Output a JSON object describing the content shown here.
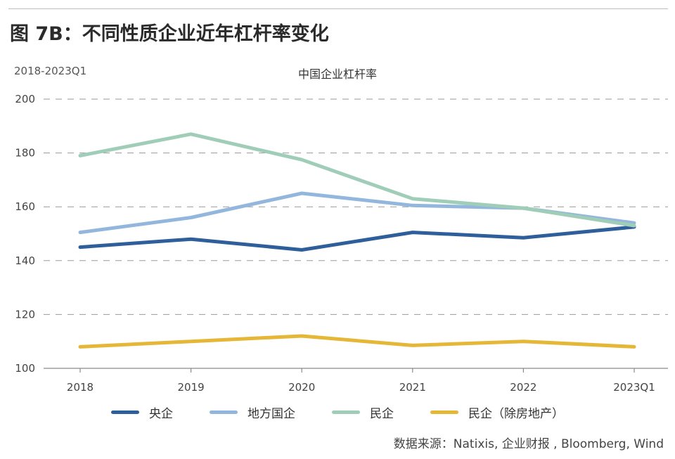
{
  "header": {
    "figure_title": "图 7B：不同性质企业近年杠杆率变化",
    "period": "2018-2023Q1"
  },
  "source_note": "数据来源：Natixis, 企业财报 , Bloomberg, Wind",
  "chart_data": {
    "type": "line",
    "title": "中国企业杠杆率",
    "xlabel": "",
    "ylabel": "",
    "categories": [
      "2018",
      "2019",
      "2020",
      "2021",
      "2022",
      "2023Q1"
    ],
    "ylim": [
      100,
      200
    ],
    "yticks": [
      "100",
      "120",
      "140",
      "160",
      "180",
      "200"
    ],
    "grid": "dashed-horizontal",
    "legend_position": "bottom",
    "series": [
      {
        "name": "央企",
        "color": "#2f5f9a",
        "values": [
          145,
          148,
          144,
          150.5,
          148.5,
          152.5
        ]
      },
      {
        "name": "地方国企",
        "color": "#93b7dc",
        "values": [
          150.5,
          156,
          165,
          160.5,
          159.5,
          154
        ]
      },
      {
        "name": "民企",
        "color": "#9fcdb8",
        "values": [
          179,
          187,
          177.5,
          163,
          159.5,
          153
        ]
      },
      {
        "name": "民企（除房地产）",
        "color": "#e5b737",
        "values": [
          108,
          110,
          112,
          108.5,
          110,
          108
        ]
      }
    ]
  }
}
